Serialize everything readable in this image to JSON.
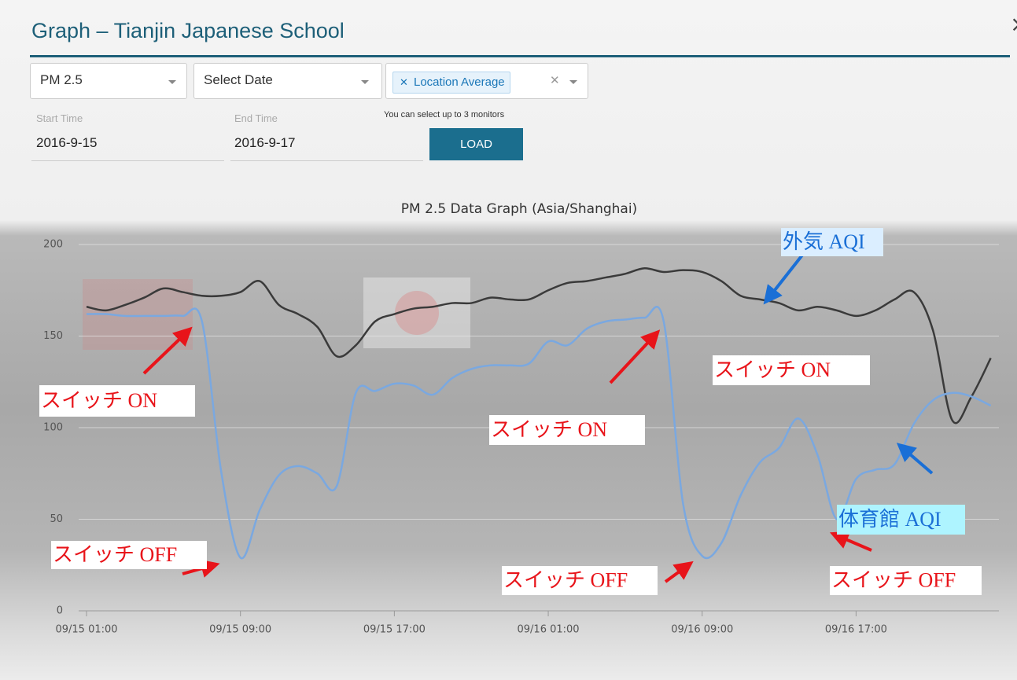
{
  "header": {
    "title": "Graph – Tianjin Japanese School",
    "close": "×"
  },
  "controls": {
    "parameter": "PM 2.5",
    "date": "Select Date",
    "monitor": "Location Average",
    "monitor_hint": "You can select up to 3 monitors",
    "start_label": "Start Time",
    "start_value": "2016-9-15",
    "end_label": "End Time",
    "end_value": "2016-9-17",
    "load": "LOAD"
  },
  "chart_data": {
    "type": "line",
    "title": "PM 2.5 Data Graph (Asia/Shanghai)",
    "categories": [
      "09/15 01:00",
      null,
      null,
      null,
      null,
      null,
      null,
      null,
      "09/15 09:00",
      null,
      null,
      null,
      null,
      null,
      null,
      null,
      "09/15 17:00",
      null,
      null,
      null,
      null,
      null,
      null,
      null,
      "09/16 01:00",
      null,
      null,
      null,
      null,
      null,
      null,
      null,
      "09/16 09:00",
      null,
      null,
      null,
      null,
      null,
      null,
      null,
      "09/16 17:00",
      null,
      null,
      null,
      null,
      null,
      null,
      null
    ],
    "series": [
      {
        "color": "#3a3a3a",
        "values": [
          166,
          164,
          167,
          171,
          176,
          174,
          172,
          172,
          174,
          180,
          167,
          162,
          155,
          139,
          145,
          158,
          162,
          165,
          166,
          168,
          168,
          171,
          170,
          170,
          175,
          179,
          180,
          182,
          184,
          187,
          185,
          186,
          185,
          180,
          172,
          170,
          168,
          164,
          166,
          164,
          161,
          164,
          170,
          174,
          153,
          104,
          117,
          138
        ]
      },
      {
        "color": "#7aa8e0",
        "values": [
          162,
          162,
          161,
          161,
          161,
          161,
          158,
          76,
          29,
          55,
          74,
          79,
          75,
          68,
          119,
          120,
          124,
          123,
          118,
          127,
          132,
          134,
          134,
          135,
          147,
          145,
          154,
          158,
          159,
          160,
          158,
          59,
          30,
          37,
          63,
          81,
          89,
          105,
          85,
          50,
          72,
          77,
          80,
          102,
          115,
          119,
          117,
          112
        ]
      }
    ],
    "ylim": [
      0,
      200
    ],
    "yticks": [
      0,
      50,
      100,
      150,
      200
    ],
    "grid": true,
    "annotations": [
      {
        "text": "外気 AQI",
        "color": "#1a6fd6"
      },
      {
        "text": "スイッチ ON",
        "color": "#e8141a"
      },
      {
        "text": "スイッチ OFF",
        "color": "#e8141a"
      },
      {
        "text": "スイッチ ON",
        "color": "#e8141a"
      },
      {
        "text": "スイッチ OFF",
        "color": "#e8141a"
      },
      {
        "text": "スイッチ ON",
        "color": "#e8141a"
      },
      {
        "text": "スイッチ OFF",
        "color": "#e8141a"
      },
      {
        "text": "体育館 AQI",
        "color": "#1a6fd6"
      }
    ]
  }
}
